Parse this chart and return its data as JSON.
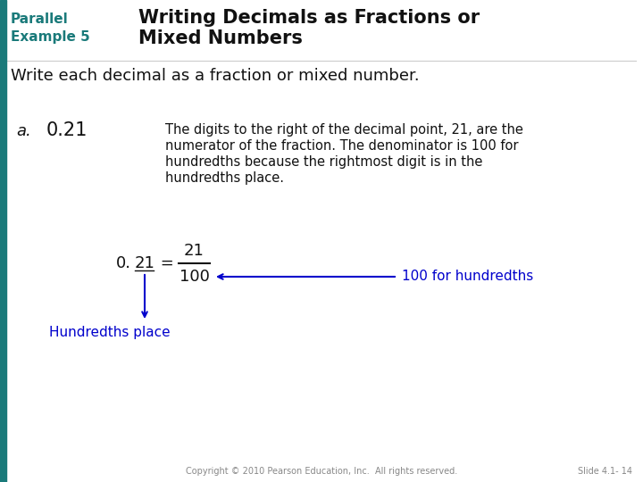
{
  "bg_color": "#ffffff",
  "left_bar_color": "#1a7a7a",
  "title_text1": "Writing Decimals as Fractions or",
  "title_text2": "Mixed Numbers",
  "parallel_label1": "Parallel",
  "parallel_label2": "Example 5",
  "subtitle": "Write each decimal as a fraction or mixed number.",
  "item_label": "a.",
  "item_value": "0.21",
  "description_lines": [
    "The digits to the right of the decimal point, 21, are the",
    "numerator of the fraction. The denominator is 100 for",
    "hundredths because the rightmost digit is in the",
    "hundredths place."
  ],
  "arrow_label1": "100 for hundredths",
  "arrow_label2": "Hundredths place",
  "copyright": "Copyright © 2010 Pearson Education, Inc.  All rights reserved.",
  "slide_num": "Slide 4.1- 14",
  "teal_color": "#1a7a7a",
  "blue_color": "#0000cc",
  "black_color": "#111111",
  "gray_color": "#888888"
}
